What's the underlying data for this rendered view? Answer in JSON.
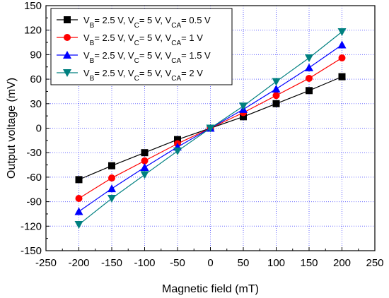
{
  "chart_data": {
    "type": "line",
    "title": "",
    "xlabel": "Magnetic field (mT)",
    "ylabel": "Output voltage (mV)",
    "xlim": [
      -250,
      250
    ],
    "ylim": [
      -150,
      150
    ],
    "xticks": [
      -250,
      -200,
      -150,
      -100,
      -50,
      0,
      50,
      100,
      150,
      200,
      250
    ],
    "yticks": [
      -150,
      -120,
      -90,
      -60,
      -30,
      0,
      30,
      60,
      90,
      120,
      150
    ],
    "grid": true,
    "legend_position": "top-left",
    "x": [
      -200,
      -150,
      -100,
      -50,
      0,
      50,
      100,
      150,
      200
    ],
    "series": [
      {
        "name": "VB= 2.5 V, VC= 5 V, VCA= 0.5 V",
        "legend_parts": [
          {
            "t": "V"
          },
          {
            "t": "B",
            "sub": true
          },
          {
            "t": "= 2.5 V, V"
          },
          {
            "t": "C",
            "sub": true
          },
          {
            "t": "= 5 V, V"
          },
          {
            "t": "CA",
            "sub": true
          },
          {
            "t": "= 0.5 V"
          }
        ],
        "color": "#000000",
        "marker": "square",
        "values": [
          -63,
          -46,
          -30,
          -14,
          0,
          14,
          30,
          46,
          63
        ]
      },
      {
        "name": "VB= 2.5 V, VC= 5 V, VCA= 1 V",
        "legend_parts": [
          {
            "t": "V"
          },
          {
            "t": "B",
            "sub": true
          },
          {
            "t": "= 2.5 V, V"
          },
          {
            "t": "C",
            "sub": true
          },
          {
            "t": "= 5 V, V"
          },
          {
            "t": "CA",
            "sub": true
          },
          {
            "t": "= 1 V"
          }
        ],
        "color": "#ff0000",
        "marker": "circle",
        "values": [
          -86,
          -61,
          -40,
          -19,
          0,
          19,
          40,
          61,
          86
        ]
      },
      {
        "name": "VB= 2.5 V, VC= 5 V, VCA= 1.5 V",
        "legend_parts": [
          {
            "t": "V"
          },
          {
            "t": "B",
            "sub": true
          },
          {
            "t": "= 2.5 V, V"
          },
          {
            "t": "C",
            "sub": true
          },
          {
            "t": "= 5 V, V"
          },
          {
            "t": "CA",
            "sub": true
          },
          {
            "t": "= 1.5 V"
          }
        ],
        "color": "#0000ff",
        "marker": "triangle-up",
        "values": [
          -102,
          -74,
          -48,
          -23,
          0,
          23,
          48,
          74,
          102
        ]
      },
      {
        "name": "VB= 2.5 V, VC= 5 V, VCA=  2 V",
        "legend_parts": [
          {
            "t": "V"
          },
          {
            "t": "B",
            "sub": true
          },
          {
            "t": "= 2.5 V, V"
          },
          {
            "t": "C",
            "sub": true
          },
          {
            "t": "= 5 V, V"
          },
          {
            "t": "CA",
            "sub": true
          },
          {
            "t": "=  2 V"
          }
        ],
        "color": "#008080",
        "marker": "triangle-down",
        "values": [
          -118,
          -86,
          -57,
          -28,
          0,
          27,
          57,
          86,
          118
        ]
      }
    ]
  }
}
